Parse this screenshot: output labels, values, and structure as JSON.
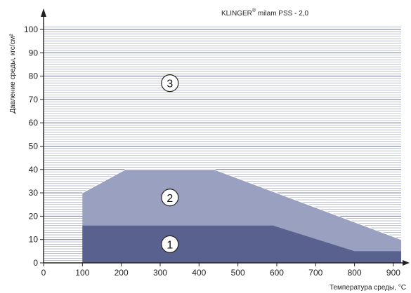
{
  "chart_data": {
    "type": "area",
    "title": {
      "prefix": "KLINGER",
      "superscript": "®",
      "suffix": " milam PSS - 2,0"
    },
    "xlabel": "Температура среды, °C",
    "ylabel": "Давление среды, кгс/см²",
    "xlim": [
      0,
      920
    ],
    "ylim": [
      0,
      100
    ],
    "x_ticks": [
      0,
      100,
      200,
      300,
      400,
      500,
      600,
      700,
      800,
      900
    ],
    "y_ticks": [
      0,
      10,
      20,
      30,
      40,
      50,
      60,
      70,
      80,
      90,
      100
    ],
    "grid": "horizontal",
    "regions": [
      {
        "name": "1",
        "color": "#59628f",
        "points": [
          [
            100,
            0
          ],
          [
            100,
            16
          ],
          [
            590,
            16
          ],
          [
            800,
            5
          ],
          [
            920,
            5
          ],
          [
            920,
            0
          ]
        ],
        "label_at": [
          325,
          8
        ]
      },
      {
        "name": "2",
        "color": "#9aa0c0",
        "points": [
          [
            100,
            0
          ],
          [
            100,
            30
          ],
          [
            210,
            40
          ],
          [
            440,
            40
          ],
          [
            920,
            10
          ],
          [
            920,
            0
          ]
        ],
        "label_at": [
          325,
          28
        ]
      },
      {
        "name": "3",
        "color": "#ffffff",
        "label_at": [
          325,
          77
        ]
      }
    ]
  }
}
